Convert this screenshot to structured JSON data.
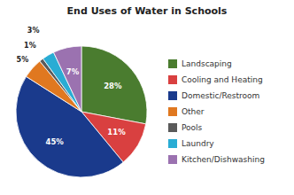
{
  "chart_data": {
    "type": "pie",
    "title": "End Uses of Water in Schools",
    "categories": [
      "Landscaping",
      "Cooling and Heating",
      "Domestic/Restroom",
      "Other",
      "Pools",
      "Laundry",
      "Kitchen/Dishwashing"
    ],
    "values": [
      28,
      11,
      45,
      5,
      1,
      3,
      7
    ],
    "value_labels": [
      "28%",
      "11%",
      "45%",
      "5%",
      "1%",
      "3%",
      "7%"
    ],
    "colors": [
      "#4a7c2f",
      "#d94040",
      "#1a3a8c",
      "#e07820",
      "#5a5a5a",
      "#29acd4",
      "#9b72b0"
    ],
    "data_labels": true
  }
}
